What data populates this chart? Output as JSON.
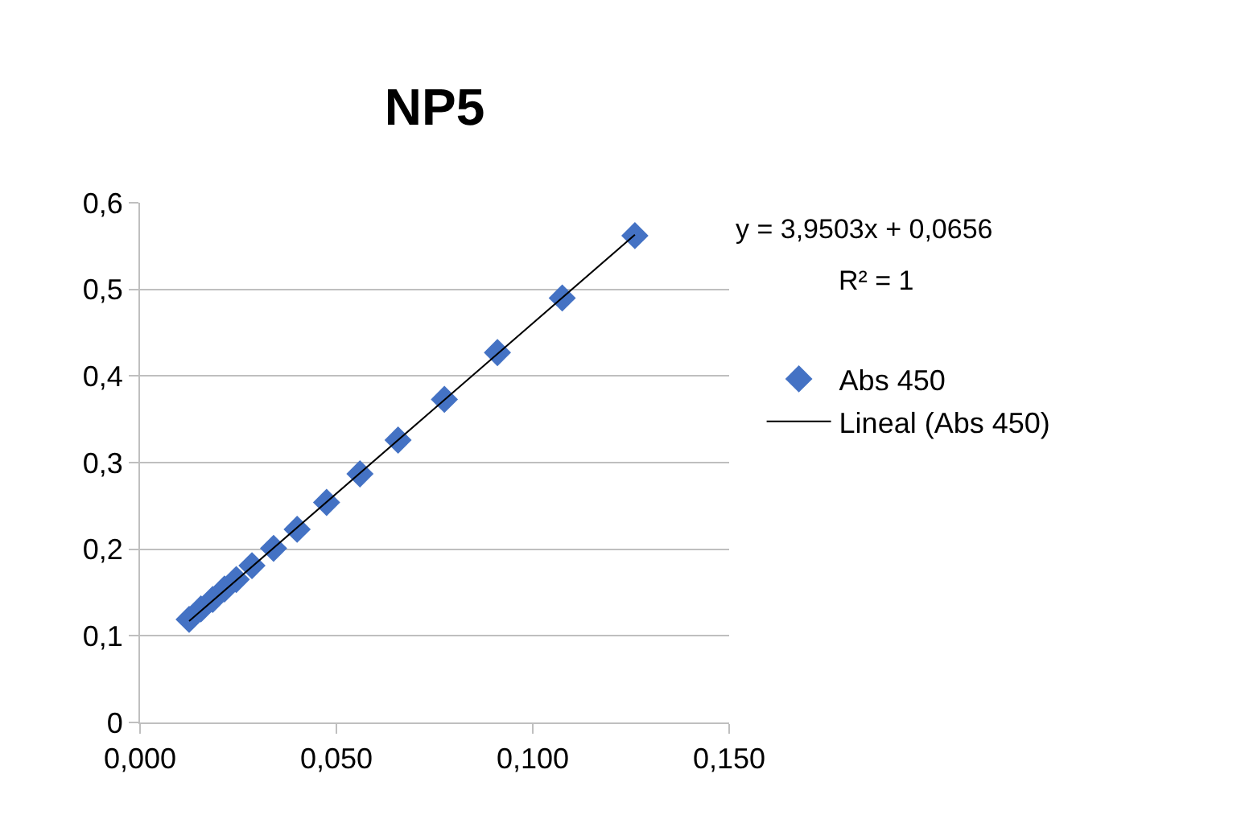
{
  "chart_data": {
    "type": "scatter",
    "title": "NP5",
    "annotations": [
      "y = 3,9503x + 0,0656",
      "R² = 1"
    ],
    "series": [
      {
        "name": "Abs 450",
        "type": "scatter",
        "color": "#4472c4",
        "marker": "diamond",
        "x": [
          0.0125,
          0.0155,
          0.0185,
          0.0215,
          0.0245,
          0.0285,
          0.034,
          0.04,
          0.0475,
          0.056,
          0.0657,
          0.0775,
          0.091,
          0.1075,
          0.126
        ],
        "values": [
          0.119,
          0.131,
          0.142,
          0.154,
          0.165,
          0.181,
          0.201,
          0.223,
          0.254,
          0.287,
          0.326,
          0.373,
          0.427,
          0.49,
          0.562
        ]
      },
      {
        "name": "Lineal (Abs 450)",
        "type": "line",
        "color": "#000000",
        "marker": "none",
        "line_style": "solid",
        "x": [
          0.0125,
          0.126
        ],
        "values": [
          0.117,
          0.563
        ]
      }
    ],
    "xlim": [
      0,
      0.15
    ],
    "xticks": [
      {
        "value": 0,
        "label": "0,000"
      },
      {
        "value": 0.05,
        "label": "0,050"
      },
      {
        "value": 0.1,
        "label": "0,100"
      },
      {
        "value": 0.15,
        "label": "0,150"
      }
    ],
    "ylim": [
      0,
      0.6
    ],
    "yticks": [
      {
        "value": 0,
        "label": "0"
      },
      {
        "value": 0.1,
        "label": "0,1"
      },
      {
        "value": 0.2,
        "label": "0,2"
      },
      {
        "value": 0.3,
        "label": "0,3"
      },
      {
        "value": 0.4,
        "label": "0,4"
      },
      {
        "value": 0.5,
        "label": "0,5"
      },
      {
        "value": 0.6,
        "label": "0,6"
      }
    ],
    "grid": "y",
    "legend": "right"
  }
}
